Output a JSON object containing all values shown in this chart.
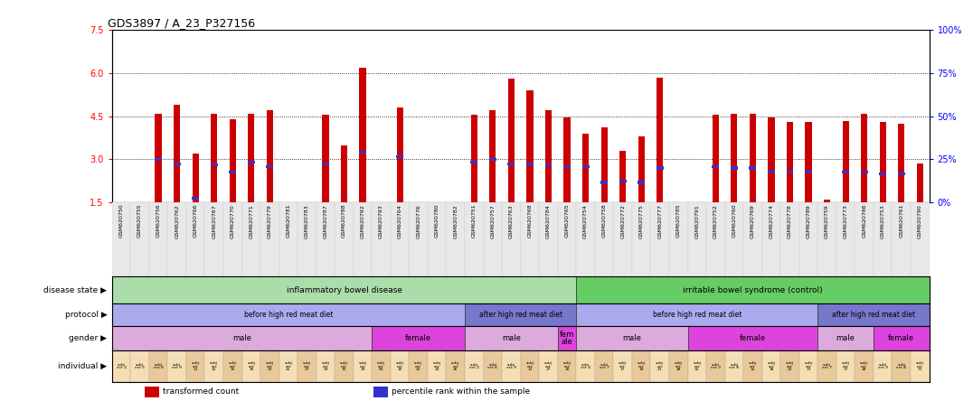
{
  "title": "GDS3897 / A_23_P327156",
  "samples": [
    "GSM620750",
    "GSM620755",
    "GSM620756",
    "GSM620762",
    "GSM620766",
    "GSM620767",
    "GSM620770",
    "GSM620771",
    "GSM620779",
    "GSM620781",
    "GSM620783",
    "GSM620787",
    "GSM620788",
    "GSM620792",
    "GSM620793",
    "GSM620764",
    "GSM620776",
    "GSM620780",
    "GSM620782",
    "GSM620751",
    "GSM620757",
    "GSM620763",
    "GSM620768",
    "GSM620784",
    "GSM620765",
    "GSM620754",
    "GSM620758",
    "GSM620772",
    "GSM620775",
    "GSM620777",
    "GSM620785",
    "GSM620791",
    "GSM620752",
    "GSM620760",
    "GSM620769",
    "GSM620774",
    "GSM620778",
    "GSM620789",
    "GSM620759",
    "GSM620773",
    "GSM620786",
    "GSM620753",
    "GSM620761",
    "GSM620790"
  ],
  "bar_heights": [
    1.5,
    1.5,
    4.6,
    4.9,
    3.2,
    4.6,
    4.4,
    4.6,
    4.7,
    1.5,
    1.5,
    4.55,
    3.5,
    6.2,
    1.5,
    4.8,
    1.5,
    1.5,
    1.5,
    4.55,
    4.7,
    5.8,
    5.4,
    4.7,
    4.45,
    3.9,
    4.1,
    3.3,
    3.8,
    5.85,
    1.5,
    1.5,
    4.55,
    4.6,
    4.6,
    4.45,
    4.3,
    4.3,
    1.6,
    4.35,
    4.6,
    4.3,
    4.25,
    2.85
  ],
  "percentile_heights": [
    1.5,
    1.5,
    3.0,
    2.85,
    1.65,
    2.8,
    2.55,
    2.9,
    2.75,
    1.5,
    1.5,
    2.85,
    1.5,
    3.25,
    1.5,
    3.1,
    1.5,
    1.5,
    1.5,
    2.9,
    3.0,
    2.85,
    2.85,
    2.8,
    2.75,
    2.75,
    2.2,
    2.25,
    2.2,
    2.7,
    1.5,
    1.5,
    2.75,
    2.7,
    2.7,
    2.6,
    2.6,
    2.6,
    1.5,
    2.55,
    2.55,
    2.5,
    2.5,
    1.5
  ],
  "ymin": 1.5,
  "ymax": 7.5,
  "yticks": [
    1.5,
    3.0,
    4.5,
    6.0,
    7.5
  ],
  "y2ticks": [
    0,
    25,
    50,
    75,
    100
  ],
  "bar_color": "#cc0000",
  "percentile_color": "#3333cc",
  "disease_state_groups": [
    {
      "label": "inflammatory bowel disease",
      "start": 0,
      "end": 25,
      "color": "#aaddaa"
    },
    {
      "label": "irritable bowel syndrome (control)",
      "start": 25,
      "end": 44,
      "color": "#66cc66"
    }
  ],
  "protocol_groups": [
    {
      "label": "before high red meat diet",
      "start": 0,
      "end": 19,
      "color": "#aaaaee"
    },
    {
      "label": "after high red meat diet",
      "start": 19,
      "end": 25,
      "color": "#7777cc"
    },
    {
      "label": "before high red meat diet",
      "start": 25,
      "end": 38,
      "color": "#aaaaee"
    },
    {
      "label": "after high red meat diet",
      "start": 38,
      "end": 44,
      "color": "#7777cc"
    }
  ],
  "gender_groups": [
    {
      "label": "male",
      "start": 0,
      "end": 14,
      "color": "#ddaadd"
    },
    {
      "label": "female",
      "start": 14,
      "end": 19,
      "color": "#dd44dd"
    },
    {
      "label": "male",
      "start": 19,
      "end": 24,
      "color": "#ddaadd"
    },
    {
      "label": "fem\nale",
      "start": 24,
      "end": 25,
      "color": "#dd44dd"
    },
    {
      "label": "male",
      "start": 25,
      "end": 31,
      "color": "#ddaadd"
    },
    {
      "label": "female",
      "start": 31,
      "end": 38,
      "color": "#dd44dd"
    },
    {
      "label": "male",
      "start": 38,
      "end": 41,
      "color": "#ddaadd"
    },
    {
      "label": "female",
      "start": 41,
      "end": 44,
      "color": "#dd44dd"
    }
  ],
  "individual_data": [
    {
      "label": "subj\nect 2",
      "color": "#f5deb3"
    },
    {
      "label": "subj\nect 5",
      "color": "#f5deb3"
    },
    {
      "label": "subj\nect 6",
      "color": "#e8c99a"
    },
    {
      "label": "subj\nect 9",
      "color": "#f5deb3"
    },
    {
      "label": "subj\nect\n11",
      "color": "#e8c99a"
    },
    {
      "label": "subj\nect\n12",
      "color": "#f5deb3"
    },
    {
      "label": "subj\nect\n15",
      "color": "#e8c99a"
    },
    {
      "label": "subj\nect\n16",
      "color": "#f5deb3"
    },
    {
      "label": "subj\nect\n23",
      "color": "#e8c99a"
    },
    {
      "label": "subj\nect\n25",
      "color": "#f5deb3"
    },
    {
      "label": "subj\nect\n27",
      "color": "#e8c99a"
    },
    {
      "label": "subj\nect\n29",
      "color": "#f5deb3"
    },
    {
      "label": "subj\nect\n30",
      "color": "#e8c99a"
    },
    {
      "label": "subj\nect\n33",
      "color": "#f5deb3"
    },
    {
      "label": "subj\nect\n56",
      "color": "#e8c99a"
    },
    {
      "label": "subj\nect\n10",
      "color": "#f5deb3"
    },
    {
      "label": "subj\nect\n20",
      "color": "#e8c99a"
    },
    {
      "label": "subj\nect\n24",
      "color": "#f5deb3"
    },
    {
      "label": "subj\nect\n26",
      "color": "#e8c99a"
    },
    {
      "label": "subj\nect 2",
      "color": "#f5deb3"
    },
    {
      "label": "subj\nect 6",
      "color": "#e8c99a"
    },
    {
      "label": "subj\nect 9",
      "color": "#f5deb3"
    },
    {
      "label": "subj\nect\n12",
      "color": "#e8c99a"
    },
    {
      "label": "subj\nect\n27",
      "color": "#f5deb3"
    },
    {
      "label": "subj\nect\n10",
      "color": "#e8c99a"
    },
    {
      "label": "subj\nect 4",
      "color": "#f5deb3"
    },
    {
      "label": "subj\nect 7",
      "color": "#e8c99a"
    },
    {
      "label": "subj\nect\n17",
      "color": "#f5deb3"
    },
    {
      "label": "subj\nect\n19",
      "color": "#e8c99a"
    },
    {
      "label": "subj\nect\n21",
      "color": "#f5deb3"
    },
    {
      "label": "subj\nect\n28",
      "color": "#e8c99a"
    },
    {
      "label": "subj\nect\n32",
      "color": "#f5deb3"
    },
    {
      "label": "subj\nect 3",
      "color": "#e8c99a"
    },
    {
      "label": "subj\nect 8",
      "color": "#f5deb3"
    },
    {
      "label": "subj\nect\n14",
      "color": "#e8c99a"
    },
    {
      "label": "subj\nect\n18",
      "color": "#f5deb3"
    },
    {
      "label": "subj\nect\n22",
      "color": "#e8c99a"
    },
    {
      "label": "subj\nect\n31",
      "color": "#f5deb3"
    },
    {
      "label": "subj\nect 7",
      "color": "#e8c99a"
    },
    {
      "label": "subj\nect\n17",
      "color": "#f5deb3"
    },
    {
      "label": "subj\nect\n28",
      "color": "#e8c99a"
    },
    {
      "label": "subj\nect 3",
      "color": "#f5deb3"
    },
    {
      "label": "subj\nect 8",
      "color": "#e8c99a"
    },
    {
      "label": "subj\nect\n31",
      "color": "#f5deb3"
    }
  ],
  "legend_items": [
    {
      "color": "#cc0000",
      "label": "transformed count"
    },
    {
      "color": "#3333cc",
      "label": "percentile rank within the sample"
    }
  ],
  "row_labels": [
    "disease state",
    "protocol",
    "gender",
    "individual"
  ]
}
